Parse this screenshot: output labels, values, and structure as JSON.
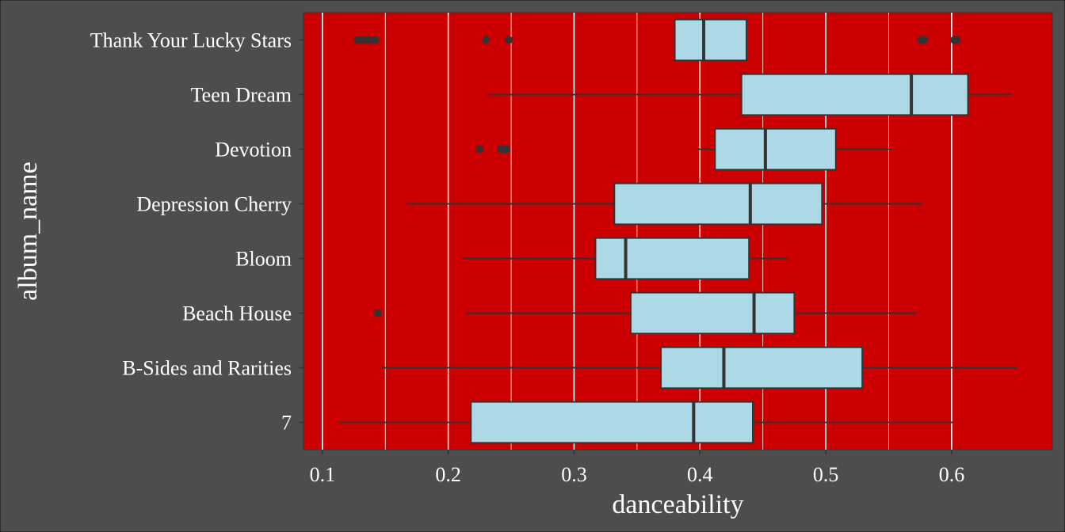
{
  "chart_data": {
    "type": "boxplot",
    "orientation": "horizontal",
    "xlabel": "danceability",
    "ylabel": "album_name",
    "xlim": [
      0.085,
      0.68
    ],
    "x_ticks": [
      0.1,
      0.2,
      0.3,
      0.4,
      0.5,
      0.6
    ],
    "x_tick_labels": [
      "0.1",
      "0.2",
      "0.3",
      "0.4",
      "0.5",
      "0.6"
    ],
    "grid": true,
    "colors": {
      "background": "#4d4d4d",
      "panel": "#cc0000",
      "grid": "#ffffff",
      "box_fill": "#add8e6",
      "line": "#333333",
      "text": "#ffffff"
    },
    "categories": [
      "Thank Your Lucky Stars",
      "Teen Dream",
      "Devotion",
      "Depression Cherry",
      "Bloom",
      "Beach House",
      "B-Sides and Rarities",
      "7"
    ],
    "boxes": [
      {
        "category": "Thank Your Lucky Stars",
        "whisker_low": 0.38,
        "q1": 0.38,
        "median": 0.403,
        "q3": 0.437,
        "whisker_high": 0.437,
        "outliers": [
          0.128,
          0.133,
          0.137,
          0.142,
          0.23,
          0.248,
          0.576,
          0.578,
          0.602,
          0.604
        ]
      },
      {
        "category": "Teen Dream",
        "whisker_low": 0.232,
        "q1": 0.433,
        "median": 0.568,
        "q3": 0.613,
        "whisker_high": 0.648,
        "outliers": []
      },
      {
        "category": "Devotion",
        "whisker_low": 0.398,
        "q1": 0.412,
        "median": 0.452,
        "q3": 0.508,
        "whisker_high": 0.553,
        "outliers": [
          0.225,
          0.242,
          0.246
        ]
      },
      {
        "category": "Depression Cherry",
        "whisker_low": 0.167,
        "q1": 0.332,
        "median": 0.44,
        "q3": 0.497,
        "whisker_high": 0.577,
        "outliers": []
      },
      {
        "category": "Bloom",
        "whisker_low": 0.212,
        "q1": 0.317,
        "median": 0.341,
        "q3": 0.439,
        "whisker_high": 0.47,
        "outliers": []
      },
      {
        "category": "Beach House",
        "whisker_low": 0.214,
        "q1": 0.345,
        "median": 0.443,
        "q3": 0.475,
        "whisker_high": 0.573,
        "outliers": [
          0.144
        ]
      },
      {
        "category": "B-Sides and Rarities",
        "whisker_low": 0.147,
        "q1": 0.369,
        "median": 0.419,
        "q3": 0.529,
        "whisker_high": 0.652,
        "outliers": []
      },
      {
        "category": "7",
        "whisker_low": 0.113,
        "q1": 0.218,
        "median": 0.395,
        "q3": 0.442,
        "whisker_high": 0.601,
        "outliers": []
      }
    ]
  }
}
